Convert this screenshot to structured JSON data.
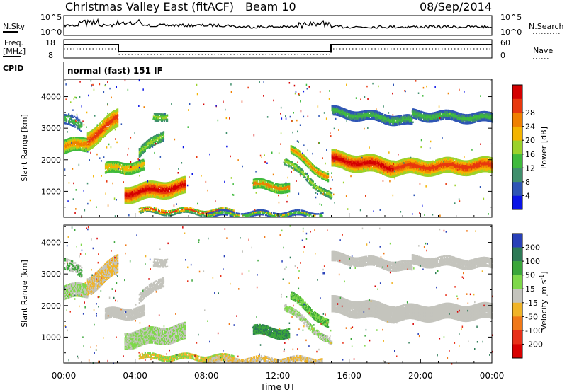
{
  "header": {
    "title": "Christmas Valley East (fitACF)",
    "beam": "Beam 10",
    "date": "08/Sep/2014"
  },
  "params": {
    "nsky_label": "N.Sky",
    "nsky_ticks": [
      "10^5",
      "10^0"
    ],
    "nsearch_label": "N.Search",
    "nsearch_ticks": [
      "10^5",
      "10^0"
    ],
    "freq_label": "Freq.",
    "freq_unit": "[MHz]",
    "freq_ticks": [
      "18",
      "8"
    ],
    "nave_label": "Nave",
    "nave_ticks": [
      "60",
      "0"
    ],
    "cpid_label": "CPID",
    "cpid_value": "normal (fast) 151 IF"
  },
  "chart_data": [
    {
      "type": "heatmap",
      "name": "power",
      "ylabel": "Slant Range [km]",
      "ylim": [
        180,
        4550
      ],
      "yticks": [
        1000,
        2000,
        3000,
        4000
      ],
      "xlim": [
        0,
        24
      ],
      "colorbar": {
        "label": "Power [dB]",
        "ticks": [
          "4",
          "8",
          "12",
          "16",
          "20",
          "24",
          "28"
        ],
        "colors": [
          "#0a14e6",
          "#2e55b5",
          "#3f8f6c",
          "#3fba3c",
          "#9bd22a",
          "#f4b400",
          "#f08000",
          "#e8380e",
          "#d40000"
        ]
      }
    },
    {
      "type": "heatmap",
      "name": "velocity",
      "ylabel": "Slant Range [km]",
      "ylim": [
        180,
        4550
      ],
      "yticks": [
        1000,
        2000,
        3000,
        4000
      ],
      "xlim": [
        0,
        24
      ],
      "xlabel": "Time UT",
      "xticks": [
        "00:00",
        "04:00",
        "08:00",
        "12:00",
        "16:00",
        "20:00",
        "00:00"
      ],
      "colorbar": {
        "label": "Velocity [m s^-1]",
        "ticks": [
          "200",
          "100",
          "50",
          "15",
          "-15",
          "-50",
          "-100",
          "-200"
        ],
        "colors": [
          "#2840b8",
          "#2d7a56",
          "#3aa63a",
          "#7ed84a",
          "#c4c4bd",
          "#f0b428",
          "#f07818",
          "#e83018",
          "#d80000"
        ]
      }
    }
  ]
}
